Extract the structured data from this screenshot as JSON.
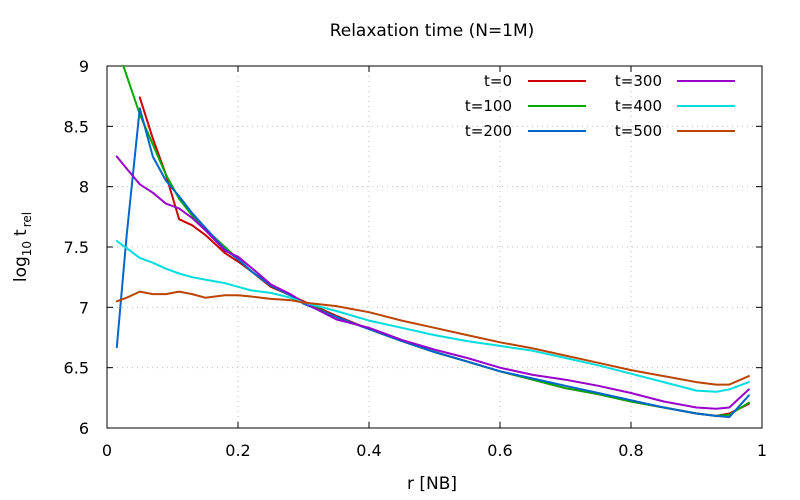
{
  "chart_data": {
    "type": "line",
    "title": "Relaxation time (N=1M)",
    "xlabel": "r [NB]",
    "ylabel_main": "log",
    "ylabel_sub": "10",
    "ylabel_t": "t",
    "ylabel_t_sub": "rel",
    "xlim": [
      0,
      1
    ],
    "ylim": [
      6,
      9
    ],
    "xticks": [
      0,
      0.2,
      0.4,
      0.6,
      0.8,
      1
    ],
    "xtick_labels": [
      "0",
      "0.2",
      "0.4",
      "0.6",
      "0.8",
      "1"
    ],
    "yticks": [
      6,
      6.5,
      7,
      7.5,
      8,
      8.5,
      9
    ],
    "ytick_labels": [
      "6",
      "6.5",
      "7",
      "7.5",
      "8",
      "8.5",
      "9"
    ],
    "grid": true,
    "legend_position": "top-right",
    "series": [
      {
        "name": "t=0",
        "color": "#cc0000",
        "x": [
          0.05,
          0.07,
          0.09,
          0.11,
          0.13,
          0.15,
          0.18,
          0.2,
          0.22,
          0.25,
          0.28,
          0.3,
          0.35,
          0.4,
          0.45,
          0.5,
          0.55,
          0.6,
          0.65,
          0.7,
          0.75,
          0.8,
          0.85,
          0.9,
          0.93,
          0.95,
          0.98
        ],
        "values": [
          8.74,
          8.4,
          8.1,
          7.73,
          7.68,
          7.6,
          7.45,
          7.38,
          7.3,
          7.17,
          7.1,
          7.05,
          6.93,
          6.82,
          6.72,
          6.63,
          6.55,
          6.47,
          6.4,
          6.33,
          6.28,
          6.22,
          6.17,
          6.12,
          6.1,
          6.12,
          6.2
        ]
      },
      {
        "name": "t=100",
        "color": "#00aa00",
        "x": [
          0.025,
          0.05,
          0.07,
          0.09,
          0.11,
          0.13,
          0.15,
          0.18,
          0.2,
          0.22,
          0.25,
          0.28,
          0.3,
          0.35,
          0.4,
          0.45,
          0.5,
          0.55,
          0.6,
          0.65,
          0.7,
          0.75,
          0.8,
          0.85,
          0.9,
          0.93,
          0.95,
          0.98
        ],
        "values": [
          9.0,
          8.6,
          8.35,
          8.1,
          7.9,
          7.76,
          7.65,
          7.5,
          7.4,
          7.3,
          7.18,
          7.1,
          7.04,
          6.92,
          6.82,
          6.72,
          6.63,
          6.55,
          6.47,
          6.4,
          6.33,
          6.28,
          6.22,
          6.17,
          6.12,
          6.1,
          6.11,
          6.21
        ]
      },
      {
        "name": "t=200",
        "color": "#0066cc",
        "x": [
          0.015,
          0.03,
          0.05,
          0.07,
          0.09,
          0.11,
          0.13,
          0.15,
          0.18,
          0.2,
          0.22,
          0.25,
          0.28,
          0.3,
          0.35,
          0.4,
          0.45,
          0.5,
          0.55,
          0.6,
          0.65,
          0.7,
          0.75,
          0.8,
          0.85,
          0.9,
          0.93,
          0.95,
          0.98
        ],
        "values": [
          6.67,
          7.6,
          8.65,
          8.25,
          8.05,
          7.92,
          7.78,
          7.66,
          7.48,
          7.4,
          7.3,
          7.18,
          7.1,
          7.03,
          6.92,
          6.82,
          6.72,
          6.63,
          6.55,
          6.47,
          6.41,
          6.35,
          6.29,
          6.23,
          6.17,
          6.12,
          6.1,
          6.09,
          6.27
        ]
      },
      {
        "name": "t=300",
        "color": "#9900cc",
        "x": [
          0.015,
          0.03,
          0.05,
          0.07,
          0.09,
          0.11,
          0.13,
          0.15,
          0.18,
          0.2,
          0.22,
          0.25,
          0.28,
          0.3,
          0.35,
          0.4,
          0.45,
          0.5,
          0.55,
          0.6,
          0.65,
          0.7,
          0.75,
          0.8,
          0.85,
          0.9,
          0.93,
          0.95,
          0.98
        ],
        "values": [
          8.25,
          8.15,
          8.02,
          7.95,
          7.86,
          7.82,
          7.74,
          7.64,
          7.47,
          7.42,
          7.33,
          7.19,
          7.11,
          7.04,
          6.9,
          6.83,
          6.73,
          6.65,
          6.58,
          6.5,
          6.44,
          6.4,
          6.35,
          6.29,
          6.22,
          6.17,
          6.16,
          6.17,
          6.32
        ]
      },
      {
        "name": "t=400",
        "color": "#00dddd",
        "x": [
          0.015,
          0.03,
          0.05,
          0.07,
          0.09,
          0.11,
          0.13,
          0.15,
          0.18,
          0.2,
          0.22,
          0.25,
          0.28,
          0.3,
          0.35,
          0.4,
          0.45,
          0.5,
          0.55,
          0.6,
          0.65,
          0.7,
          0.75,
          0.8,
          0.85,
          0.9,
          0.93,
          0.95,
          0.98
        ],
        "values": [
          7.55,
          7.49,
          7.41,
          7.37,
          7.32,
          7.28,
          7.25,
          7.23,
          7.2,
          7.17,
          7.14,
          7.12,
          7.08,
          7.04,
          6.97,
          6.89,
          6.83,
          6.77,
          6.72,
          6.68,
          6.64,
          6.58,
          6.52,
          6.45,
          6.38,
          6.31,
          6.3,
          6.32,
          6.38
        ]
      },
      {
        "name": "t=500",
        "color": "#bb4400",
        "x": [
          0.015,
          0.03,
          0.05,
          0.07,
          0.09,
          0.11,
          0.13,
          0.15,
          0.18,
          0.2,
          0.22,
          0.25,
          0.28,
          0.3,
          0.35,
          0.4,
          0.45,
          0.5,
          0.55,
          0.6,
          0.65,
          0.7,
          0.75,
          0.8,
          0.85,
          0.9,
          0.93,
          0.95,
          0.98
        ],
        "values": [
          7.05,
          7.08,
          7.13,
          7.11,
          7.11,
          7.13,
          7.11,
          7.08,
          7.1,
          7.1,
          7.09,
          7.07,
          7.06,
          7.04,
          7.01,
          6.96,
          6.89,
          6.83,
          6.77,
          6.71,
          6.66,
          6.6,
          6.54,
          6.48,
          6.43,
          6.38,
          6.36,
          6.36,
          6.43
        ]
      }
    ]
  }
}
